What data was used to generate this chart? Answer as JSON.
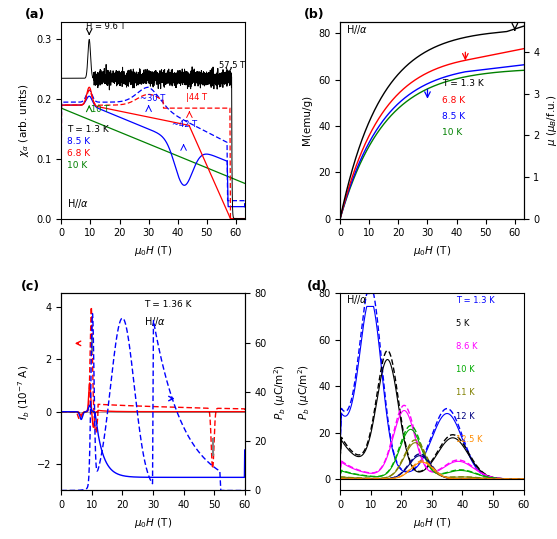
{
  "fig_size": [
    5.57,
    5.39
  ],
  "dpi": 100,
  "panel_a": {
    "xlabel": "$\\mu_0H$ (T)",
    "ylabel": "$\\chi_\\alpha$ (arb. units)",
    "xlim": [
      0,
      63
    ],
    "ylim": [
      0.0,
      0.33
    ],
    "yticks": [
      0.0,
      0.1,
      0.2,
      0.3
    ],
    "xticks": [
      0,
      10,
      20,
      30,
      40,
      50,
      60
    ]
  },
  "panel_b": {
    "xlabel": "$\\mu_0H$ (T)",
    "ylabel": "M(emu/g)",
    "ylabel_right": "$\\mu$ ($\\mu_B$/f.u.)",
    "xlim": [
      0,
      63
    ],
    "ylim": [
      0,
      85
    ],
    "ylim_right": [
      0,
      4.73
    ],
    "yticks": [
      0,
      20,
      40,
      60,
      80
    ],
    "yticks_right": [
      0,
      1,
      2,
      3,
      4
    ],
    "xticks": [
      0,
      10,
      20,
      30,
      40,
      50,
      60
    ]
  },
  "panel_c": {
    "xlabel": "$\\mu_0H$ (T)",
    "ylabel": "$I_b$ (10$^{-7}$ A)",
    "ylabel_right": "$P_b$ ($\\mu$C/m$^2$)",
    "xlim": [
      0,
      60
    ],
    "ylim": [
      -3,
      4.5
    ],
    "ylim_right": [
      0,
      80
    ],
    "yticks": [
      -2,
      0,
      2,
      4
    ],
    "yticks_right": [
      0,
      20,
      40,
      60,
      80
    ],
    "xticks": [
      0,
      10,
      20,
      30,
      40,
      50,
      60
    ]
  },
  "panel_d": {
    "xlabel": "$\\mu_0H$ (T)",
    "ylabel": "$P_b$ ($\\mu$C/m$^2$)",
    "xlim": [
      0,
      60
    ],
    "ylim": [
      -5,
      80
    ],
    "yticks": [
      0,
      20,
      40,
      60,
      80
    ],
    "xticks": [
      0,
      10,
      20,
      30,
      40,
      50,
      60
    ],
    "T_labels": [
      "T = 1.3 K",
      "5 K",
      "8.6 K",
      "10 K",
      "11 K",
      "12 K",
      "12.5 K"
    ],
    "colors": [
      "#0000ff",
      "#000000",
      "#ff00ff",
      "#00aa00",
      "#808000",
      "#000080",
      "#ff8c00"
    ]
  }
}
